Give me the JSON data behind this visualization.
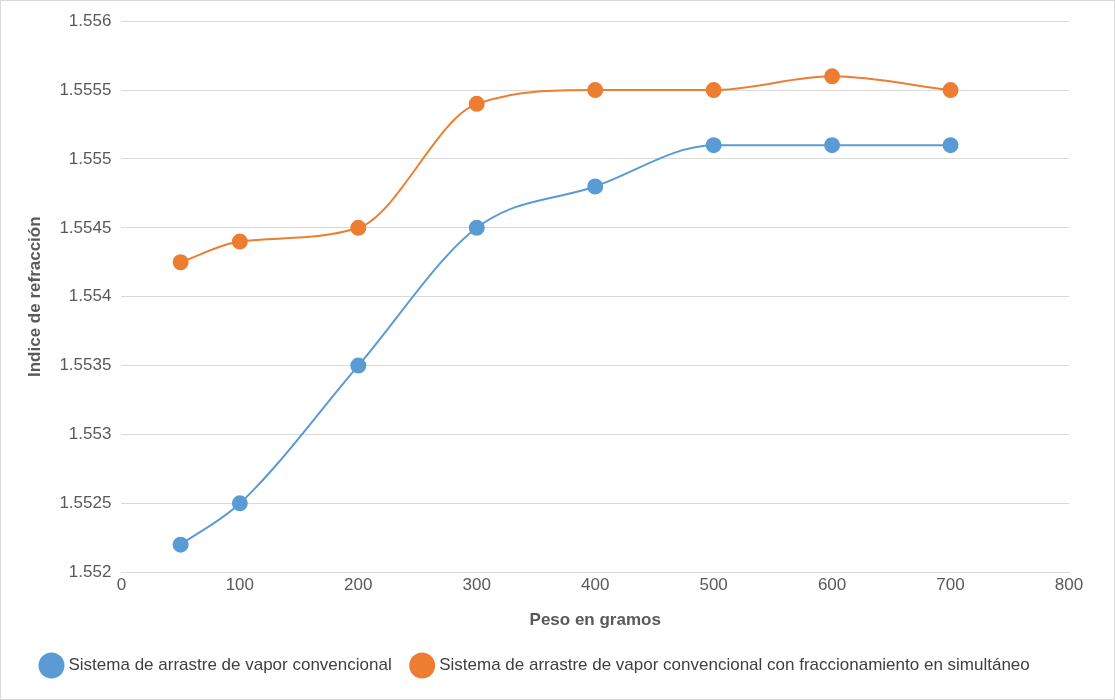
{
  "chart_data": {
    "type": "line",
    "xlabel": "Peso en gramos",
    "ylabel": "Indice de refracción",
    "x": [
      50,
      100,
      200,
      300,
      400,
      500,
      600,
      700
    ],
    "series": [
      {
        "name": "Sistema de arrastre de vapor convencional",
        "color": "#5b9bd5",
        "values": [
          1.5522,
          1.5525,
          1.5535,
          1.5545,
          1.5548,
          1.5551,
          1.5551,
          1.5551
        ]
      },
      {
        "name": "Sistema de arrastre de vapor convencional con fraccionamiento en simultáneo",
        "color": "#ed7d31",
        "values": [
          1.55425,
          1.5544,
          1.5545,
          1.5554,
          1.5555,
          1.5555,
          1.5556,
          1.5555
        ]
      }
    ],
    "xlim": [
      0,
      800
    ],
    "xticks": [
      0,
      100,
      200,
      300,
      400,
      500,
      600,
      700,
      800
    ],
    "ylim": [
      1.552,
      1.556
    ],
    "yticks": [
      1.552,
      1.5525,
      1.553,
      1.5535,
      1.554,
      1.5545,
      1.555,
      1.5555,
      1.556
    ],
    "grid": "y",
    "legend": "bottom",
    "marker": "circle",
    "line_style": "solid"
  }
}
